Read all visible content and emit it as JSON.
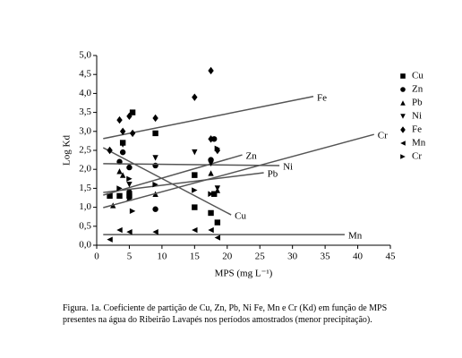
{
  "chart_data": {
    "type": "scatter",
    "x_label": "MPS (mg L⁻¹)",
    "y_label": "Log Kd",
    "xlim": [
      0,
      45
    ],
    "xticks": [
      0,
      5,
      10,
      15,
      20,
      25,
      30,
      35,
      40,
      45
    ],
    "ylim": [
      0,
      5
    ],
    "yticks": [
      {
        "value": 0,
        "label": "0,0"
      },
      {
        "value": 0.5,
        "label": "0,5"
      },
      {
        "value": 1,
        "label": "1,0"
      },
      {
        "value": 1.5,
        "label": "1,5"
      },
      {
        "value": 2,
        "label": "2,0"
      },
      {
        "value": 2.5,
        "label": "2,5"
      },
      {
        "value": 3,
        "label": "3,0"
      },
      {
        "value": 3.5,
        "label": "3,5"
      },
      {
        "value": 4,
        "label": "4,0"
      },
      {
        "value": 4.5,
        "label": "4,5"
      },
      {
        "value": 5,
        "label": "5,0"
      }
    ],
    "series": [
      {
        "name": "Cu",
        "color": "#000000",
        "marker": "square",
        "x": [
          2,
          3.5,
          4,
          5,
          5.5,
          9,
          15,
          15,
          17.5,
          18.5,
          18
        ],
        "values": [
          1.3,
          1.3,
          2.7,
          1.3,
          3.5,
          2.95,
          1.0,
          1.85,
          0.85,
          0.6,
          1.35
        ],
        "fit": {
          "x": [
            1,
            20.6
          ],
          "y": [
            2.57,
            0.8
          ]
        }
      },
      {
        "name": "Zn",
        "color": "#000000",
        "marker": "circle",
        "x": [
          3.5,
          4,
          5,
          5,
          9,
          9,
          17.5,
          18
        ],
        "values": [
          2.2,
          2.45,
          1.4,
          2.05,
          0.95,
          2.1,
          2.25,
          2.8
        ],
        "fit": {
          "x": [
            1,
            22.3
          ],
          "y": [
            1.32,
            2.38
          ]
        }
      },
      {
        "name": "Pb",
        "color": "#000000",
        "marker": "triangle-up",
        "x": [
          2.5,
          3.5,
          4,
          5,
          9,
          15,
          17.5,
          18.5
        ],
        "values": [
          1.05,
          1.95,
          1.85,
          1.25,
          1.35,
          1.85,
          1.9,
          1.45
        ],
        "fit": {
          "x": [
            1,
            25.6
          ],
          "y": [
            1.39,
            1.91
          ]
        }
      },
      {
        "name": "Ni",
        "color": "#000000",
        "marker": "triangle-down",
        "x": [
          4,
          5,
          9,
          15,
          17.5,
          18.5
        ],
        "values": [
          2.65,
          1.6,
          2.3,
          2.45,
          2.15,
          1.5
        ],
        "fit": {
          "x": [
            1,
            28
          ],
          "y": [
            2.15,
            2.1
          ]
        }
      },
      {
        "name": "Fe",
        "color": "#000000",
        "marker": "diamond",
        "x": [
          2,
          3.5,
          4,
          5,
          5.5,
          9,
          15,
          17.5,
          17.5,
          18.5
        ],
        "values": [
          2.5,
          3.3,
          3.0,
          3.4,
          2.95,
          3.35,
          3.9,
          4.6,
          2.8,
          2.5
        ],
        "fit": {
          "x": [
            1,
            33.2
          ],
          "y": [
            2.81,
            3.92
          ]
        }
      },
      {
        "name": "Mn",
        "color": "#000000",
        "marker": "triangle-left",
        "x": [
          2,
          3.5,
          5,
          9,
          15,
          17.5,
          18.5
        ],
        "values": [
          0.15,
          0.4,
          0.35,
          0.35,
          0.4,
          0.4,
          0.2
        ],
        "fit": {
          "x": [
            1,
            38
          ],
          "y": [
            0.28,
            0.28
          ]
        }
      },
      {
        "name": "Cr",
        "color": "#000000",
        "marker": "triangle-right",
        "x": [
          3.5,
          5,
          5.5,
          9,
          15,
          17.5,
          18.5
        ],
        "values": [
          1.5,
          1.75,
          0.9,
          1.6,
          1.45,
          1.35,
          2.55
        ],
        "fit": {
          "x": [
            1,
            42.5
          ],
          "y": [
            0.99,
            2.92
          ]
        }
      }
    ]
  },
  "caption": [
    "Figura. 1a. Coeficiente de partição de Cu, Zn, Pb, Ni Fe, Mn e Cr (Kd) em função de MPS",
    "presentes na água do Ribeirão Lavapés nos períodos amostrados (menor precipitação)."
  ]
}
